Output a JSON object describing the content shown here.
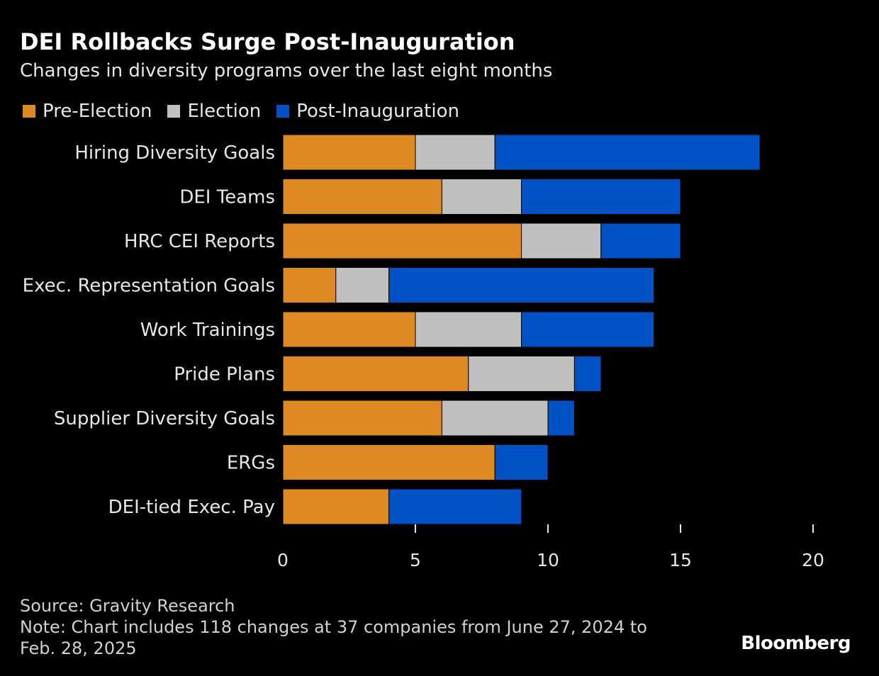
{
  "chart_data": {
    "type": "bar",
    "orientation": "horizontal",
    "stacked": true,
    "title": "DEI Rollbacks Surge Post-Inauguration",
    "subtitle": "Changes in diversity programs over the last eight months",
    "categories": [
      "Hiring Diversity Goals",
      "DEI Teams",
      "HRC CEI Reports",
      "Exec. Representation Goals",
      "Work Trainings",
      "Pride Plans",
      "Supplier Diversity Goals",
      "ERGs",
      "DEI-tied Exec. Pay"
    ],
    "series": [
      {
        "name": "Pre-Election",
        "color": "#dd8a25",
        "values": [
          5,
          6,
          9,
          2,
          5,
          7,
          6,
          8,
          4
        ]
      },
      {
        "name": "Election",
        "color": "#c0c0c0",
        "values": [
          3,
          3,
          3,
          2,
          4,
          4,
          4,
          0,
          0
        ]
      },
      {
        "name": "Post-Inauguration",
        "color": "#0051c3",
        "values": [
          10,
          6,
          3,
          10,
          5,
          1,
          1,
          2,
          5
        ]
      }
    ],
    "xlim": [
      0,
      20
    ],
    "xticks": [
      "0",
      "5",
      "10",
      "15",
      "20"
    ],
    "xlabel": "",
    "ylabel": "",
    "grid": false,
    "legend": "top-left"
  },
  "footer": {
    "source": "Source: Gravity Research",
    "note": "Note: Chart includes 118 changes at 37 companies from June 27, 2024 to Feb. 28, 2025"
  },
  "brand": "Bloomberg"
}
